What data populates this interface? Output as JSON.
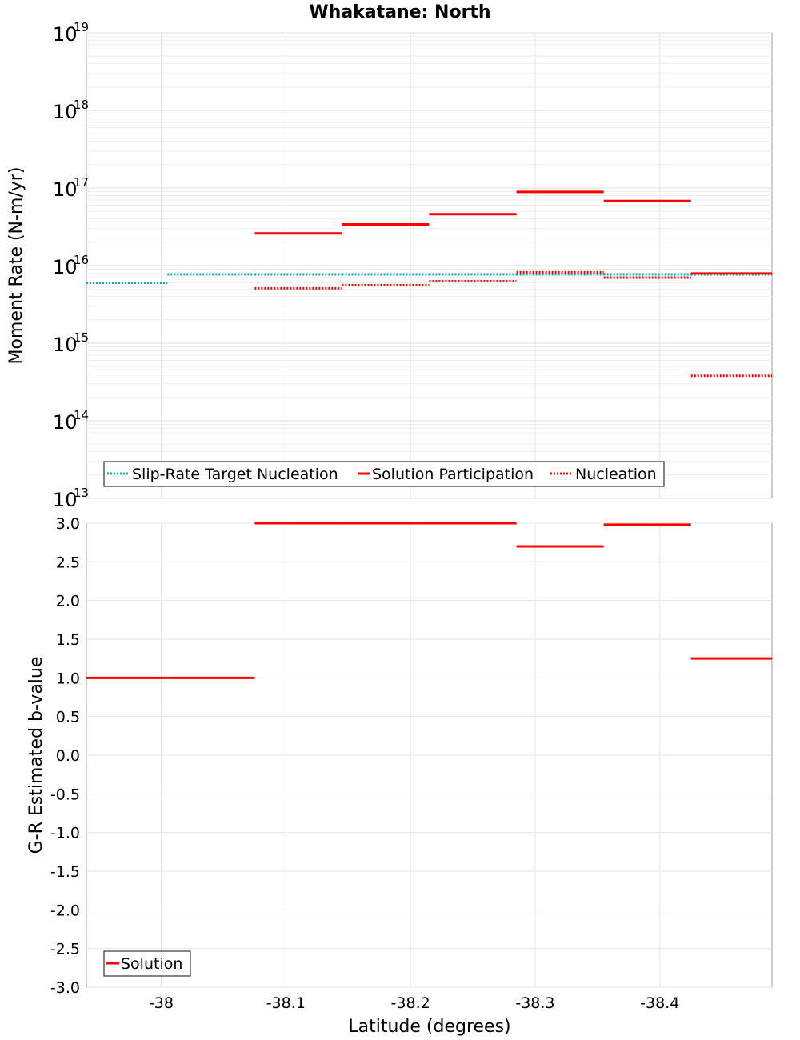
{
  "chart_data": [
    {
      "type": "line",
      "title": "Whakatane: North",
      "ylabel": "Moment Rate (N-m/yr)",
      "xlabel": "",
      "yscale": "log",
      "xlim": [
        -37.94,
        -38.49
      ],
      "ylim": [
        10000000000000.0,
        1e+19
      ],
      "y_ticks": [
        13,
        14,
        15,
        16,
        17,
        18,
        19
      ],
      "grid": true,
      "legend_position": "bottom-left",
      "series": [
        {
          "name": "Slip-Rate Target Nucleation",
          "style": "dotted",
          "color": "#00b3b3",
          "segments": [
            {
              "x0": -37.94,
              "x1": -38.005,
              "y": 6000000000000000.0
            },
            {
              "x0": -38.005,
              "x1": -38.075,
              "y": 7700000000000000.0
            },
            {
              "x0": -38.075,
              "x1": -38.145,
              "y": 7700000000000000.0
            },
            {
              "x0": -38.145,
              "x1": -38.215,
              "y": 7700000000000000.0
            },
            {
              "x0": -38.215,
              "x1": -38.285,
              "y": 7700000000000000.0
            },
            {
              "x0": -38.285,
              "x1": -38.355,
              "y": 7700000000000000.0
            },
            {
              "x0": -38.355,
              "x1": -38.425,
              "y": 7700000000000000.0
            },
            {
              "x0": -38.425,
              "x1": -38.49,
              "y": 7700000000000000.0
            }
          ]
        },
        {
          "name": "Solution Participation",
          "style": "solid",
          "color": "#ff0000",
          "segments": [
            {
              "x0": -38.075,
              "x1": -38.145,
              "y": 2.6e+16
            },
            {
              "x0": -38.145,
              "x1": -38.215,
              "y": 3.4e+16
            },
            {
              "x0": -38.215,
              "x1": -38.285,
              "y": 4.6e+16
            },
            {
              "x0": -38.285,
              "x1": -38.355,
              "y": 8.9e+16
            },
            {
              "x0": -38.355,
              "x1": -38.425,
              "y": 6.8e+16
            },
            {
              "x0": -38.425,
              "x1": -38.49,
              "y": 7900000000000000.0
            }
          ]
        },
        {
          "name": "Nucleation",
          "style": "dotted",
          "color": "#ff0000",
          "segments": [
            {
              "x0": -38.075,
              "x1": -38.145,
              "y": 5100000000000000.0
            },
            {
              "x0": -38.145,
              "x1": -38.215,
              "y": 5600000000000000.0
            },
            {
              "x0": -38.215,
              "x1": -38.285,
              "y": 6300000000000000.0
            },
            {
              "x0": -38.285,
              "x1": -38.355,
              "y": 8200000000000000.0
            },
            {
              "x0": -38.355,
              "x1": -38.425,
              "y": 7000000000000000.0
            },
            {
              "x0": -38.425,
              "x1": -38.49,
              "y": 380000000000000.0
            }
          ]
        }
      ]
    },
    {
      "type": "line",
      "title": "",
      "ylabel": "G-R Estimated b-value",
      "xlabel": "Latitude (degrees)",
      "xlim": [
        -37.94,
        -38.49
      ],
      "ylim": [
        -3.0,
        3.0
      ],
      "x_ticks": [
        "-38",
        "-38.1",
        "-38.2",
        "-38.3",
        "-38.4"
      ],
      "x_tick_values": [
        -38.0,
        -38.1,
        -38.2,
        -38.3,
        -38.4
      ],
      "y_ticks": [
        "3.0",
        "2.5",
        "2.0",
        "1.5",
        "1.0",
        "0.5",
        "0.0",
        "-0.5",
        "-1.0",
        "-1.5",
        "-2.0",
        "-2.5",
        "-3.0"
      ],
      "grid": true,
      "legend_position": "bottom-left",
      "series": [
        {
          "name": "Solution",
          "style": "solid",
          "color": "#ff0000",
          "segments": [
            {
              "x0": -37.94,
              "x1": -38.005,
              "y": 1.0
            },
            {
              "x0": -38.005,
              "x1": -38.075,
              "y": 1.0
            },
            {
              "x0": -38.075,
              "x1": -38.145,
              "y": 3.0
            },
            {
              "x0": -38.145,
              "x1": -38.215,
              "y": 3.0
            },
            {
              "x0": -38.215,
              "x1": -38.285,
              "y": 3.0
            },
            {
              "x0": -38.285,
              "x1": -38.355,
              "y": 2.7
            },
            {
              "x0": -38.355,
              "x1": -38.425,
              "y": 2.98
            },
            {
              "x0": -38.425,
              "x1": -38.49,
              "y": 1.25
            }
          ]
        }
      ]
    }
  ]
}
